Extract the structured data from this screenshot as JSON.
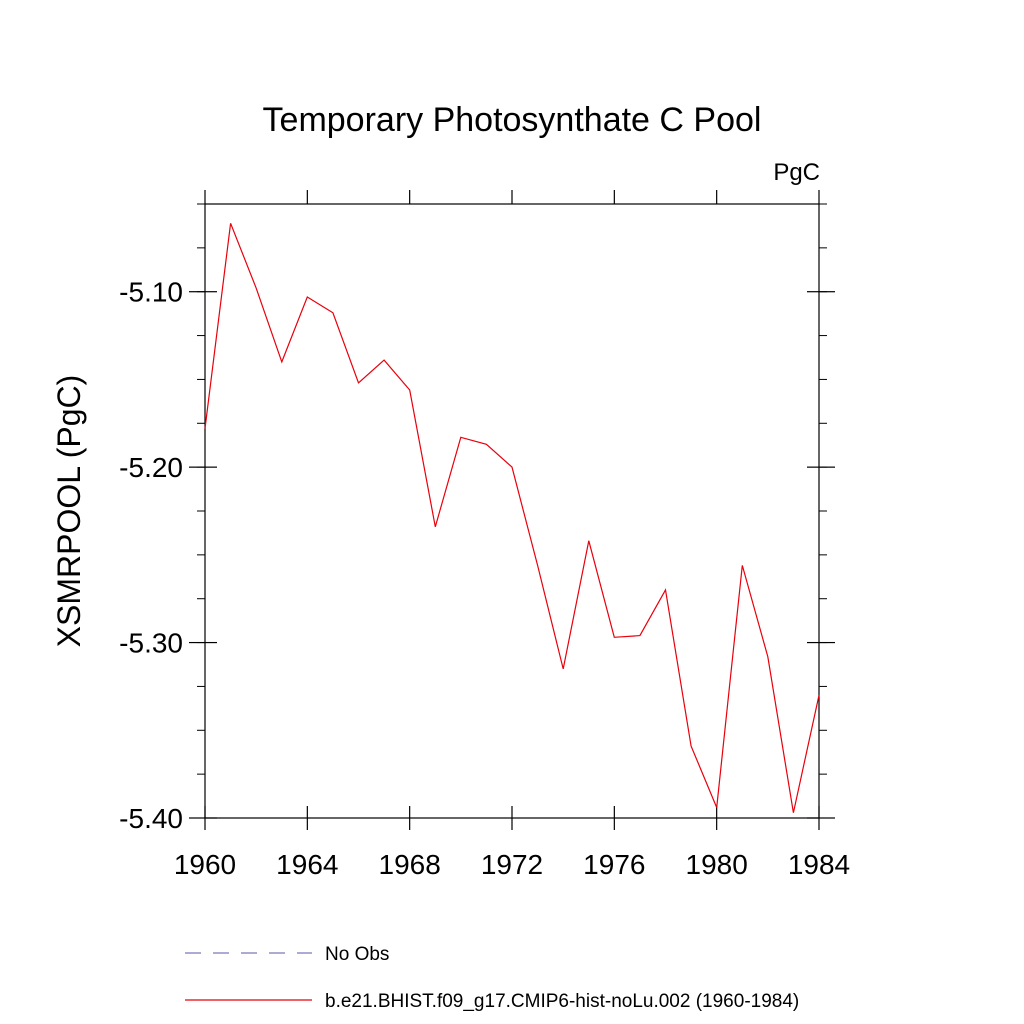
{
  "chart_data": {
    "type": "line",
    "title": "Temporary Photosynthate C Pool",
    "units_label": "PgC",
    "ylabel": "XSMRPOOL  (PgC)",
    "xlabel": "",
    "xlim": [
      1960,
      1984
    ],
    "ylim": [
      -5.4,
      -5.05
    ],
    "x_ticks": [
      1960,
      1964,
      1968,
      1972,
      1976,
      1980,
      1984
    ],
    "x_tick_labels": [
      "1960",
      "1964",
      "1968",
      "1972",
      "1976",
      "1980",
      "1984"
    ],
    "y_ticks": [
      -5.4,
      -5.3,
      -5.2,
      -5.1
    ],
    "y_tick_labels": [
      "-5.40",
      "-5.30",
      "-5.20",
      "-5.10"
    ],
    "grid": false,
    "legend_position": "bottom",
    "series": [
      {
        "name": "b.e21.BHIST.f09_g17.CMIP6-hist-noLu.002 (1960-1984)",
        "color": "#e8000b",
        "style": "solid",
        "x": [
          1960,
          1961,
          1962,
          1963,
          1964,
          1965,
          1966,
          1967,
          1968,
          1969,
          1970,
          1971,
          1972,
          1973,
          1974,
          1975,
          1976,
          1977,
          1978,
          1979,
          1980,
          1981,
          1982,
          1983,
          1984
        ],
        "y": [
          -5.178,
          -5.061,
          -5.098,
          -5.14,
          -5.103,
          -5.112,
          -5.152,
          -5.139,
          -5.156,
          -5.234,
          -5.183,
          -5.187,
          -5.2,
          -5.256,
          -5.315,
          -5.242,
          -5.297,
          -5.296,
          -5.27,
          -5.359,
          -5.394,
          -5.256,
          -5.308,
          -5.397,
          -5.33
        ]
      }
    ],
    "legend": [
      {
        "label": "No Obs",
        "color": "#7a7ab8",
        "style": "dashed"
      },
      {
        "label": "b.e21.BHIST.f09_g17.CMIP6-hist-noLu.002 (1960-1984)",
        "color": "#e8000b",
        "style": "solid"
      }
    ]
  }
}
